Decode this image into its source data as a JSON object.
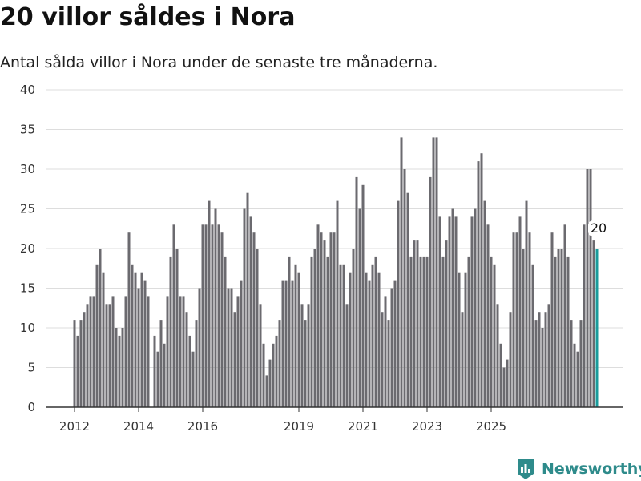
{
  "chart_data": {
    "type": "bar",
    "title": "20 villor såldes i Nora",
    "subtitle": "Antal sålda villor i Nora under de senaste tre månaderna.",
    "xlabel": "",
    "ylabel": "",
    "ylim": [
      0,
      40
    ],
    "yticks": [
      0,
      5,
      10,
      15,
      20,
      25,
      30,
      35,
      40
    ],
    "x_tick_labels": [
      "2012",
      "2014",
      "2016",
      "2019",
      "2021",
      "2023",
      "2025"
    ],
    "x_tick_index": [
      0,
      20,
      40,
      70,
      90,
      110,
      130
    ],
    "grid": true,
    "last_value_label": "20",
    "colors": {
      "bars": "#6b6a6f",
      "highlight": "#1a9c9c",
      "grid": "#dddddd",
      "axis": "#333333"
    },
    "values": [
      11,
      9,
      11,
      12,
      13,
      14,
      14,
      18,
      20,
      17,
      13,
      13,
      14,
      10,
      9,
      10,
      14,
      22,
      18,
      17,
      15,
      17,
      16,
      14,
      0,
      9,
      7,
      11,
      8,
      14,
      19,
      23,
      20,
      14,
      14,
      12,
      9,
      7,
      11,
      15,
      23,
      23,
      26,
      23,
      25,
      23,
      22,
      19,
      15,
      15,
      12,
      14,
      16,
      25,
      27,
      24,
      22,
      20,
      13,
      8,
      4,
      6,
      8,
      9,
      11,
      16,
      16,
      19,
      16,
      18,
      17,
      13,
      11,
      13,
      19,
      20,
      23,
      22,
      21,
      19,
      22,
      22,
      26,
      18,
      18,
      13,
      17,
      20,
      29,
      25,
      28,
      17,
      16,
      18,
      19,
      17,
      12,
      14,
      11,
      15,
      16,
      26,
      34,
      30,
      27,
      19,
      21,
      21,
      19,
      19,
      19,
      29,
      34,
      34,
      24,
      19,
      21,
      24,
      25,
      24,
      17,
      12,
      17,
      19,
      24,
      25,
      31,
      32,
      26,
      23,
      19,
      18,
      13,
      8,
      5,
      6,
      12,
      22,
      22,
      24,
      20,
      26,
      22,
      18,
      11,
      12,
      10,
      12,
      13,
      22,
      19,
      20,
      20,
      23,
      19,
      11,
      8,
      7,
      11,
      23,
      30,
      30,
      21,
      20
    ]
  },
  "brand": {
    "name": "Newsworthy",
    "icon": "newsworthy-logo-icon"
  }
}
